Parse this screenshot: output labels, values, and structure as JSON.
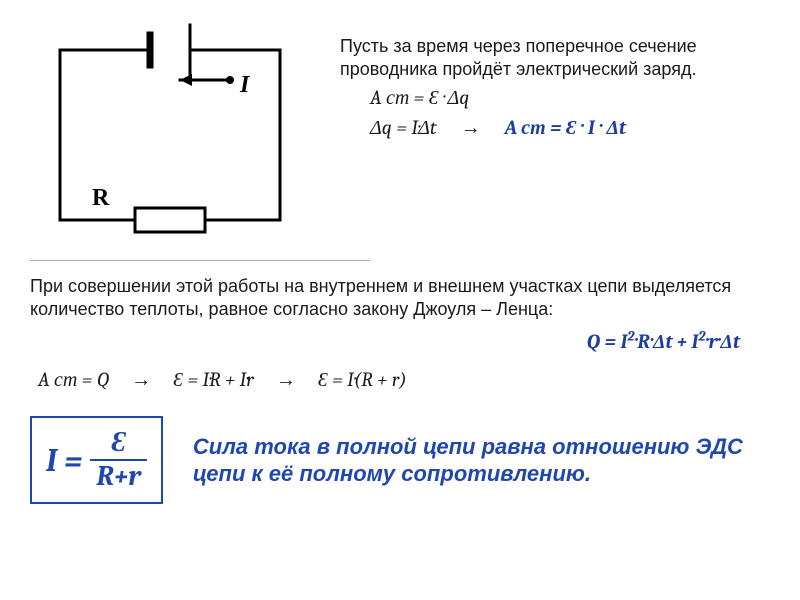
{
  "circuit": {
    "stroke_color": "#000000",
    "stroke_width": 3,
    "label_I": "I",
    "label_R": "R",
    "font_size": 24,
    "font_weight": "bold"
  },
  "intro_text": "Пусть за время  через поперечное сечение проводника пройдёт электрический заряд.",
  "eq1": "A ст =  Ɛ · Δq",
  "eq2": "Δq = I·Δt",
  "eq3": "A ст =   Ɛ · I · Δt",
  "arrow_text": "→",
  "para_main": "При совершении этой работы на внутреннем и внешнем участках цепи выделяется количество теплоты, равное согласно закону Джоуля – Ленца:",
  "heat_eq_html": "Q = I<sup>2</sup>·R·Δt + I<sup>2</sup>·r·Δt",
  "deriv1": "A ст = Q",
  "deriv2": "Ɛ = I·R + I·r",
  "deriv3": "Ɛ = I·(R + r)",
  "ohm_box": {
    "left": "I =",
    "num": "Ɛ",
    "den": "R+r",
    "border_color": "#2046b0",
    "text_color": "#2046b0"
  },
  "summary_text": "Сила тока в полной цепи равна отношению ЭДС цепи к её полному сопротивлению.",
  "colors": {
    "text": "#1a1a1a",
    "blue": "#1f3d9c",
    "summary_blue": "#2046b0"
  }
}
